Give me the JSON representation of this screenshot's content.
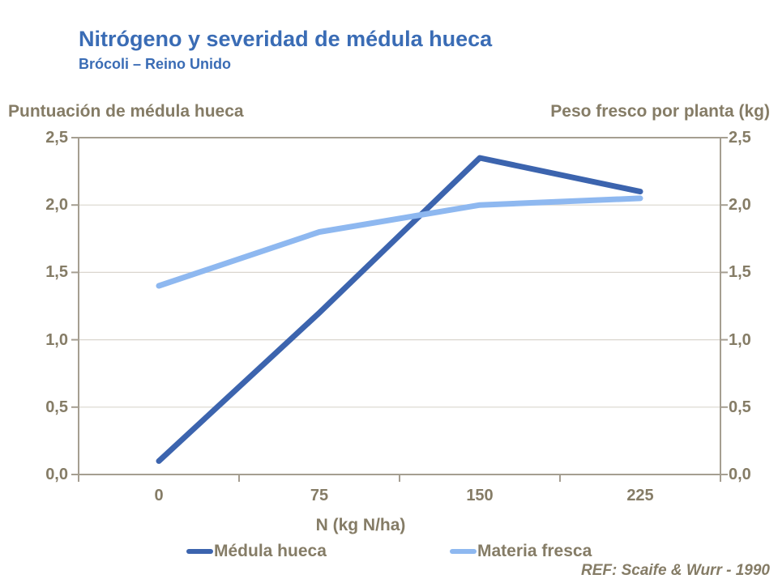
{
  "header": {
    "title": "Nitrógeno y severidad de médula hueca",
    "subtitle": "Brócoli – Reino Unido"
  },
  "axis_titles": {
    "left": "Puntuación de médula hueca",
    "right": "Peso fresco por planta (kg)",
    "x": "N (kg N/ha)"
  },
  "footnote": "REF: Scaife & Wurr - 1990",
  "colors": {
    "title_blue": "#3A6CB5",
    "text_brown": "#857C66",
    "axis_line": "#A59E91",
    "gridline": "#DAD6CE",
    "medula_blue": "#3C64AE",
    "materia_blue": "#8EB8F0"
  },
  "chart_data": {
    "type": "line",
    "xlabel": "N (kg N/ha)",
    "categories": [
      "0",
      "75",
      "150",
      "225"
    ],
    "series": [
      {
        "name": "Médula hueca",
        "axis": "left",
        "color_key": "medula_blue",
        "values": [
          0.1,
          1.2,
          2.35,
          2.1
        ]
      },
      {
        "name": "Materia fresca",
        "axis": "right",
        "color_key": "materia_blue",
        "values": [
          1.4,
          1.8,
          2.0,
          2.05
        ]
      }
    ],
    "y_left": {
      "label": "Puntuación de médula hueca",
      "min": 0,
      "max": 2.5,
      "step": 0.5,
      "tick_labels": [
        "0,0",
        "0,5",
        "1,0",
        "1,5",
        "2,0",
        "2,5"
      ]
    },
    "y_right": {
      "label": "Peso fresco por planta (kg)",
      "min": 0,
      "max": 2.5,
      "step": 0.5,
      "tick_labels": [
        "0,0",
        "0,5",
        "1,0",
        "1,5",
        "2,0",
        "2,5"
      ]
    },
    "grid": true,
    "legend_position": "bottom"
  }
}
